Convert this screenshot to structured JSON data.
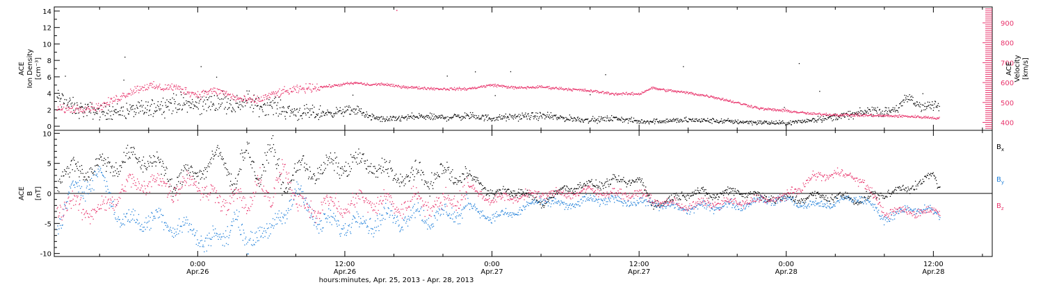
{
  "colors": {
    "black": "#000000",
    "pink": "#e8336b",
    "blue": "#1f7fd9"
  },
  "xaxis": {
    "title": "hours:minutes, Apr. 25, 2013 - Apr. 28, 2013",
    "ticks": [
      {
        "time": "0:00",
        "date": "Apr.26",
        "hour": 24
      },
      {
        "time": "12:00",
        "date": "Apr.26",
        "hour": 36
      },
      {
        "time": "0:00",
        "date": "Apr.27",
        "hour": 48
      },
      {
        "time": "12:00",
        "date": "Apr.27",
        "hour": 60
      },
      {
        "time": "0:00",
        "date": "Apr.28",
        "hour": 72
      },
      {
        "time": "12:00",
        "date": "Apr.28",
        "hour": 84
      }
    ],
    "range_hours": [
      12.3,
      88.8
    ]
  },
  "chart_data": [
    {
      "type": "scatter",
      "panel": "top",
      "ylabel_lines": [
        "ACE",
        "Ion Density",
        "[cm⁻³]"
      ],
      "ylim": [
        -0.5,
        14.5
      ],
      "yticks": [
        0,
        2,
        4,
        6,
        8,
        10,
        12,
        14
      ],
      "y2label_lines": [
        "ACE",
        "Velocity",
        "[km/s]"
      ],
      "y2lim": [
        360,
        980
      ],
      "y2ticks": [
        400,
        500,
        600,
        700,
        800,
        900
      ],
      "series": [
        {
          "color": "black",
          "axis": "left",
          "x": [
            12.5,
            14,
            16,
            18,
            20,
            22,
            24,
            26,
            27,
            28,
            29,
            30,
            31,
            32,
            33,
            34,
            35,
            36,
            37,
            38,
            39,
            40,
            41,
            42,
            44,
            46,
            48,
            50,
            52,
            54,
            56,
            58,
            60,
            62,
            64,
            66,
            68,
            70,
            72,
            74,
            76,
            78,
            79,
            80,
            81,
            82,
            83,
            84,
            84.5
          ],
          "y": [
            3.5,
            2.2,
            1.8,
            1.9,
            2.2,
            2.9,
            2.6,
            3.2,
            2.6,
            3.3,
            2.4,
            2.8,
            2.0,
            1.8,
            1.6,
            1.6,
            1.7,
            1.9,
            2.0,
            1.2,
            0.9,
            0.9,
            1.1,
            1.2,
            1.1,
            1.3,
            1.0,
            1.2,
            1.3,
            1.0,
            0.8,
            1.0,
            0.6,
            0.7,
            0.8,
            0.7,
            0.6,
            0.5,
            0.4,
            0.8,
            1.2,
            1.6,
            2.0,
            1.7,
            2.2,
            3.5,
            2.4,
            2.6,
            2.3
          ]
        },
        {
          "color": "pink",
          "axis": "right",
          "x": [
            12.5,
            14,
            16,
            18,
            19,
            20,
            21,
            22,
            24,
            25,
            26,
            27,
            28,
            29,
            30,
            31,
            32,
            33,
            34,
            35,
            36,
            37,
            38,
            39,
            40,
            41,
            42,
            44,
            46,
            48,
            50,
            52,
            54,
            56,
            58,
            60,
            61,
            62,
            64,
            66,
            68,
            70,
            72,
            74,
            76,
            78,
            80,
            82,
            84,
            84.5
          ],
          "y": [
            468,
            470,
            480,
            540,
            570,
            585,
            575,
            580,
            540,
            560,
            555,
            525,
            510,
            515,
            540,
            555,
            565,
            575,
            580,
            585,
            595,
            600,
            590,
            595,
            585,
            580,
            575,
            570,
            570,
            590,
            575,
            580,
            570,
            560,
            545,
            545,
            575,
            565,
            550,
            530,
            500,
            470,
            460,
            445,
            440,
            438,
            435,
            432,
            425,
            420
          ]
        }
      ]
    },
    {
      "type": "scatter",
      "panel": "bottom",
      "ylabel_lines": [
        "ACE",
        "B",
        "[nT]"
      ],
      "ylim": [
        -10.5,
        10.5
      ],
      "yticks": [
        -10,
        -5,
        0,
        5,
        10
      ],
      "zero_line": true,
      "legend": [
        {
          "label": "B",
          "sub": "x",
          "color": "black"
        },
        {
          "label": "B",
          "sub": "y",
          "color": "blue"
        },
        {
          "label": "B",
          "sub": "z",
          "color": "pink"
        }
      ],
      "series": [
        {
          "name": "Bx",
          "color": "black",
          "x": [
            12.5,
            14,
            16,
            18,
            20,
            22,
            24,
            26,
            27,
            28,
            29,
            30,
            31,
            32,
            34,
            36,
            38,
            40,
            42,
            44,
            46,
            48,
            50,
            52,
            54,
            56,
            58,
            60,
            61,
            62,
            64,
            66,
            68,
            70,
            72,
            74,
            76,
            78,
            80,
            82,
            84,
            84.5
          ],
          "y": [
            3,
            4,
            4.5,
            5.5,
            6,
            2,
            4,
            6,
            2,
            7,
            3,
            7.5,
            1,
            4,
            4,
            5,
            5,
            3,
            2.8,
            3,
            3.3,
            0,
            0.5,
            -1.5,
            1,
            1.5,
            2,
            2.3,
            -1.5,
            -1.5,
            0.3,
            -0.2,
            0.5,
            -0.5,
            -1,
            -0.5,
            -0.5,
            -1,
            0,
            1,
            3,
            1
          ]
        },
        {
          "name": "By",
          "color": "blue",
          "x": [
            12.5,
            14,
            16,
            18,
            20,
            22,
            24,
            26,
            27,
            28,
            29,
            30,
            31,
            32,
            34,
            36,
            38,
            40,
            42,
            44,
            46,
            48,
            50,
            52,
            54,
            56,
            58,
            60,
            61,
            62,
            64,
            66,
            68,
            70,
            72,
            74,
            76,
            78,
            80,
            82,
            84,
            84.5
          ],
          "y": [
            -5,
            1,
            3,
            -5,
            -4,
            -5,
            -7,
            -8,
            -3,
            -9.5,
            -5,
            -7,
            -3,
            0.5,
            -5,
            -5,
            -4.5,
            -4,
            -3.5,
            -4,
            -2,
            -4,
            -3,
            -1,
            -2,
            -1,
            -1,
            -1.5,
            -1.5,
            -2,
            -2.5,
            -2,
            -2,
            -1,
            -1,
            -2,
            -1.5,
            -0.5,
            -4,
            -2.5,
            -3,
            -3.5
          ]
        },
        {
          "name": "Bz",
          "color": "pink",
          "x": [
            12.5,
            14,
            16,
            18,
            20,
            22,
            24,
            26,
            27,
            28,
            29,
            30,
            31,
            32,
            34,
            36,
            38,
            40,
            42,
            44,
            46,
            48,
            50,
            52,
            54,
            56,
            58,
            60,
            61,
            62,
            64,
            66,
            68,
            70,
            72,
            74,
            76,
            78,
            80,
            82,
            84,
            84.5
          ],
          "y": [
            -2,
            -2,
            -3,
            1,
            2,
            1,
            2,
            -2,
            1,
            -4,
            4,
            -3,
            6,
            -2,
            -2,
            -2,
            -1,
            -2,
            -1,
            -2,
            1,
            -1,
            -0.5,
            0,
            0,
            0.5,
            0,
            0,
            -1,
            -1.5,
            -2,
            -1.5,
            -1.5,
            -1,
            -0.5,
            2.5,
            3.5,
            2.5,
            -3,
            -3,
            -3,
            -3
          ]
        }
      ]
    }
  ]
}
